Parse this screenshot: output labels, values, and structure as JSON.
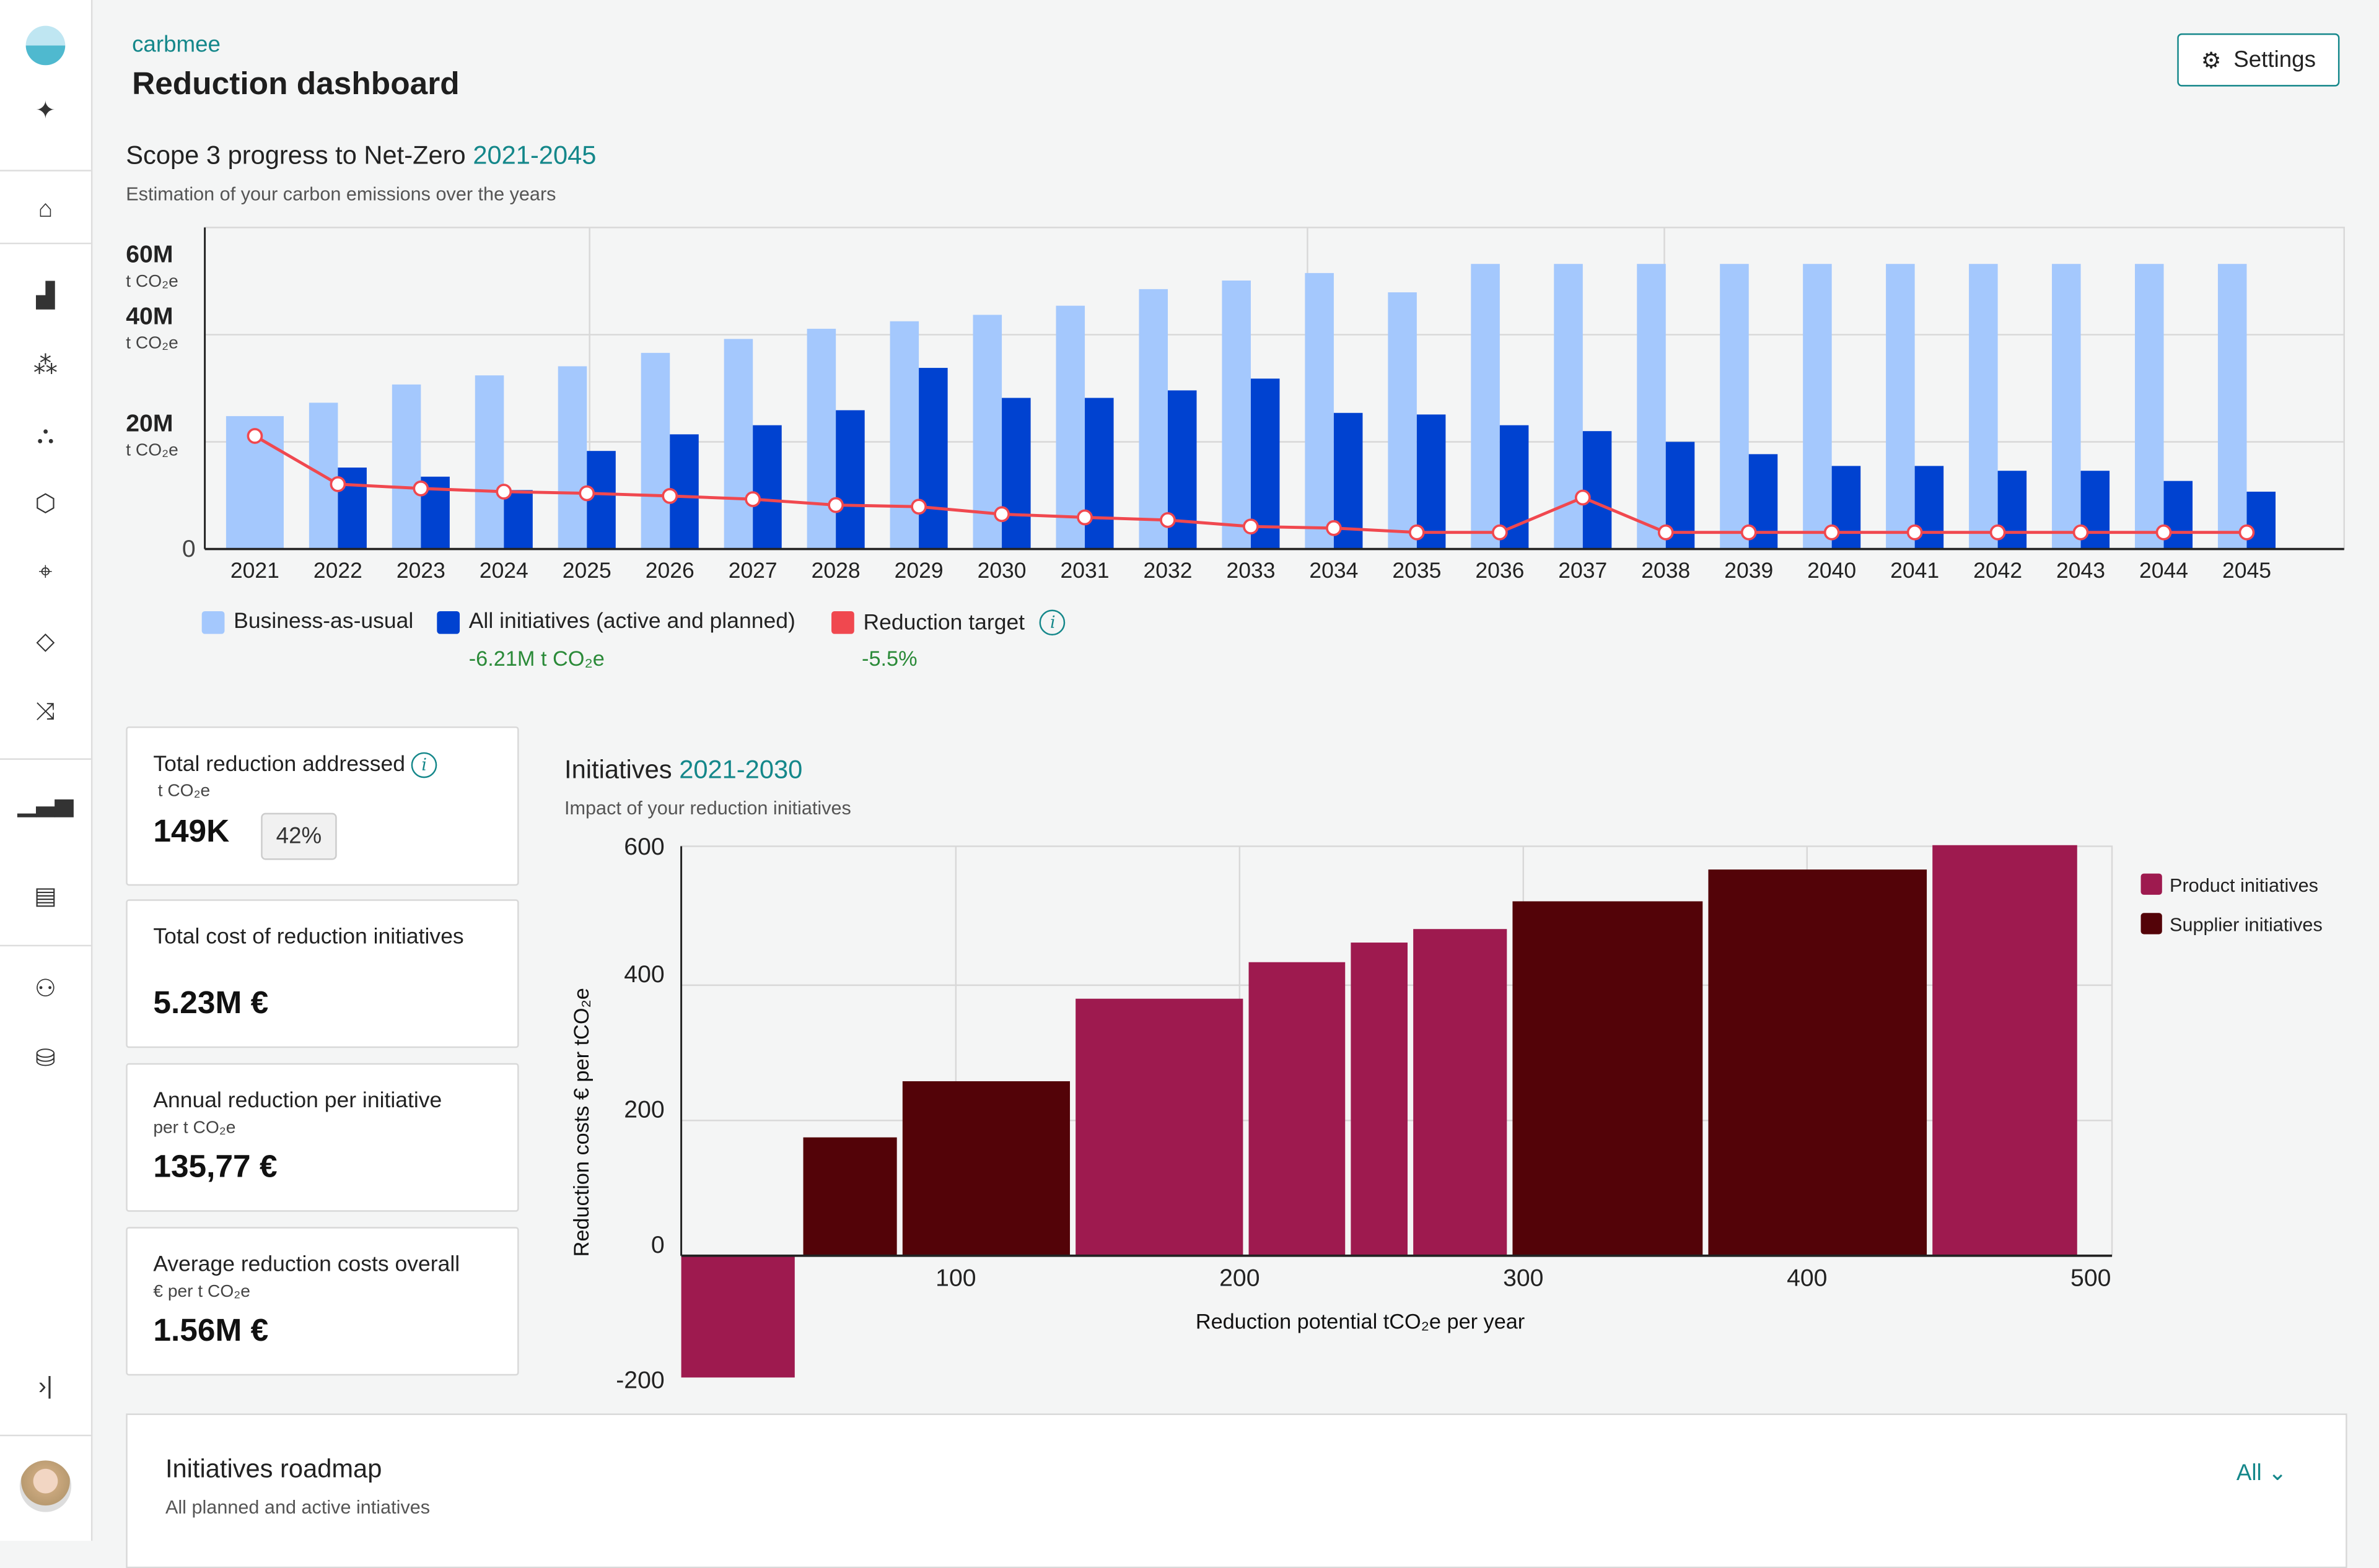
{
  "brand": "carbmee",
  "title": "Reduction dashboard",
  "settings_label": "Settings",
  "sidebar": {
    "items": [
      "sparkle",
      "home",
      "buildings",
      "products",
      "hierarchy",
      "package",
      "location",
      "layers",
      "shuffle",
      "analytics",
      "reports",
      "users",
      "database",
      "collapse"
    ]
  },
  "scope": {
    "title": "Scope 3 progress to Net-Zero",
    "range": "2021-2045",
    "subtitle": "Estimation of your carbon emissions over the years"
  },
  "legend": {
    "bau": "Business-as-usual",
    "initiatives": "All initiatives (active and planned)",
    "initiatives_delta": "-6.21M t CO₂e",
    "target": "Reduction target",
    "target_delta": "-5.5%",
    "info": "i"
  },
  "colors": {
    "accent": "#14878a",
    "bau": "#a4c8fd",
    "initiatives": "#0042d0",
    "target": "#f0484f",
    "product": "#9e1a4f",
    "supplier": "#530308"
  },
  "cards": [
    {
      "label": "Total reduction addressed",
      "unit": "t CO₂e",
      "value": "149K",
      "badge": "42%"
    },
    {
      "label": "Total cost of reduction initiatives",
      "unit": "",
      "value": "5.23M €"
    },
    {
      "label": "Annual reduction per initiative",
      "unit": "per t CO₂e",
      "value": "135,77 €"
    },
    {
      "label": "Average reduction costs overall",
      "unit": "€ per t CO₂e",
      "value": "1.56M €"
    }
  ],
  "initiatives": {
    "title": "Initiatives",
    "range": "2021-2030",
    "subtitle": "Impact of your reduction initiatives"
  },
  "roadmap": {
    "title": "Initiatives roadmap",
    "subtitle": "All planned and active intiatives",
    "filter": "All"
  },
  "chart_data": [
    {
      "type": "bar",
      "title": "Scope 3 progress to Net-Zero 2021-2045",
      "ylabel": "t CO₂e",
      "ylim": [
        0,
        60
      ],
      "yticks": [
        {
          "v": 0,
          "label": "0",
          "unit": ""
        },
        {
          "v": 20,
          "label": "20M",
          "unit": "t CO₂e"
        },
        {
          "v": 40,
          "label": "40M",
          "unit": "t CO₂e"
        },
        {
          "v": 60,
          "label": "60M",
          "unit": "t CO₂e"
        }
      ],
      "categories": [
        "2021",
        "2022",
        "2023",
        "2024",
        "2025",
        "2026",
        "2027",
        "2028",
        "2029",
        "2030",
        "2031",
        "2032",
        "2033",
        "2034",
        "2035",
        "2036",
        "2037",
        "2038",
        "2039",
        "2040",
        "2041",
        "2042",
        "2043",
        "2044",
        "2045"
      ],
      "series": [
        {
          "name": "Business-as-usual",
          "type": "bar",
          "values": [
            24.8,
            27.3,
            30.7,
            32.4,
            34.1,
            36.6,
            39.2,
            41.1,
            42.5,
            43.7,
            45.4,
            48.5,
            50.1,
            51.5,
            47.9,
            53.2,
            53.2,
            53.2,
            53.2,
            53.2,
            53.2,
            53.2,
            53.2,
            53.2,
            53.2
          ]
        },
        {
          "name": "All initiatives (active and planned)",
          "type": "bar",
          "values": [
            null,
            15.2,
            13.5,
            11.0,
            18.3,
            21.4,
            23.1,
            25.9,
            33.8,
            28.2,
            28.2,
            29.6,
            31.8,
            25.4,
            25.1,
            23.1,
            22.0,
            20.0,
            17.7,
            15.5,
            15.5,
            14.6,
            14.6,
            12.7,
            10.7
          ]
        },
        {
          "name": "Reduction target",
          "type": "line",
          "values": [
            21.1,
            12.1,
            11.3,
            10.7,
            10.4,
            9.9,
            9.3,
            8.2,
            7.9,
            6.5,
            5.9,
            5.4,
            4.2,
            3.9,
            3.1,
            3.1,
            9.6,
            3.1,
            3.1,
            3.1,
            3.1,
            3.1,
            3.1,
            3.1,
            3.1
          ]
        }
      ],
      "legend": "bottom-left"
    },
    {
      "type": "bar",
      "title": "Initiatives 2021-2030",
      "xlabel": "Reduction potential tCO₂e per year",
      "ylabel": "Reduction costs € per tCO₂e",
      "xlim": [
        0,
        500
      ],
      "ylim": [
        -200,
        600
      ],
      "xticks": [
        "100",
        "200",
        "300",
        "400",
        "500"
      ],
      "yticks": [
        "-200",
        "0",
        "200",
        "400",
        "600"
      ],
      "legend_items": [
        "Product initiatives",
        "Supplier initiatives"
      ],
      "bars": [
        {
          "group": "Product initiatives",
          "x0": 0,
          "x1": 40,
          "value": -180
        },
        {
          "group": "Supplier initiatives",
          "x0": 43,
          "x1": 76,
          "value": 175
        },
        {
          "group": "Supplier initiatives",
          "x0": 78,
          "x1": 137,
          "value": 258
        },
        {
          "group": "Product initiatives",
          "x0": 139,
          "x1": 198,
          "value": 380
        },
        {
          "group": "Product initiatives",
          "x0": 200,
          "x1": 234,
          "value": 434
        },
        {
          "group": "Product initiatives",
          "x0": 236,
          "x1": 256,
          "value": 463
        },
        {
          "group": "Product initiatives",
          "x0": 258,
          "x1": 291,
          "value": 483
        },
        {
          "group": "Supplier initiatives",
          "x0": 293,
          "x1": 360,
          "value": 524
        },
        {
          "group": "Supplier initiatives",
          "x0": 362,
          "x1": 439,
          "value": 571
        },
        {
          "group": "Product initiatives",
          "x0": 441,
          "x1": 492,
          "value": 607
        }
      ],
      "legend": "right"
    }
  ]
}
